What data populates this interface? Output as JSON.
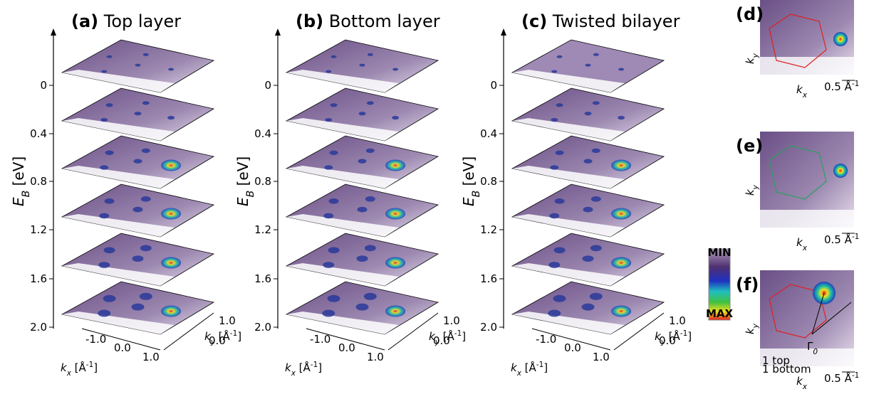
{
  "panels": [
    {
      "label": "(a)",
      "title": "Top layer"
    },
    {
      "label": "(b)",
      "title": "Bottom layer"
    },
    {
      "label": "(c)",
      "title": "Twisted bilayer"
    }
  ],
  "energy_axis": {
    "symbol": "E",
    "subscript": "B",
    "unit": " [eV]",
    "ticks": [
      "0",
      "0.4",
      "0.8",
      "1.2",
      "1.6",
      "2.0"
    ]
  },
  "kx_axis": {
    "symbol": "k",
    "subscript": "x",
    "unit": " [Å",
    "sup": "-1",
    "close": "]",
    "ticks": [
      "-1.0",
      "0.0",
      "1.0"
    ]
  },
  "ky_axis": {
    "symbol": "k",
    "subscript": "y",
    "unit": " [Å",
    "sup": "-1",
    "close": "]",
    "ticks": [
      "1.0",
      "0.0"
    ]
  },
  "side_panels": [
    {
      "label": "(d)"
    },
    {
      "label": "(e)"
    },
    {
      "label": "(f)"
    }
  ],
  "scale_bar": {
    "text": "0.5 Å",
    "sup": "-1"
  },
  "colorbar": {
    "min": "MIN",
    "max": "MAX"
  },
  "legend_f": [
    "1 top",
    "1 bottom"
  ],
  "gamma": {
    "symbol": "Γ",
    "subscript": "0"
  }
}
